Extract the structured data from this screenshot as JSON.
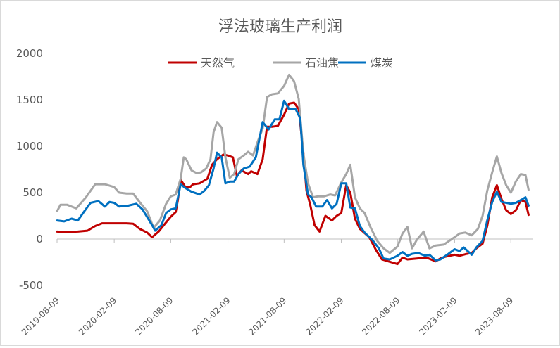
{
  "chart_data": {
    "type": "line",
    "title": "浮法玻璃生产利润",
    "xlabel": "",
    "ylabel": "",
    "ylim": [
      -500,
      2000
    ],
    "yticks": [
      -500,
      0,
      500,
      1000,
      1500,
      2000
    ],
    "xlim": [
      "2019-08-09",
      "2023-10-20"
    ],
    "xticks": [
      "2019-08-09",
      "2020-02-09",
      "2020-08-09",
      "2021-02-09",
      "2021-08-09",
      "2022-02-09",
      "2022-08-09",
      "2023-02-09",
      "2023-08-09"
    ],
    "grid": false,
    "legend_position": "top-center",
    "colors": {
      "天然气": "#c00000",
      "石油焦": "#a6a6a6",
      "煤炭": "#0070c0"
    },
    "series": [
      {
        "name": "天然气",
        "color": "#c00000",
        "points": [
          [
            "2019-08-09",
            80
          ],
          [
            "2019-09-01",
            75
          ],
          [
            "2019-10-15",
            80
          ],
          [
            "2019-11-15",
            90
          ],
          [
            "2019-12-10",
            140
          ],
          [
            "2020-01-01",
            170
          ],
          [
            "2020-02-15",
            170
          ],
          [
            "2020-03-20",
            170
          ],
          [
            "2020-04-10",
            165
          ],
          [
            "2020-05-01",
            110
          ],
          [
            "2020-05-25",
            70
          ],
          [
            "2020-06-10",
            20
          ],
          [
            "2020-07-01",
            80
          ],
          [
            "2020-07-20",
            160
          ],
          [
            "2020-08-09",
            240
          ],
          [
            "2020-08-25",
            290
          ],
          [
            "2020-09-01",
            420
          ],
          [
            "2020-09-10",
            640
          ],
          [
            "2020-09-25",
            560
          ],
          [
            "2020-10-10",
            560
          ],
          [
            "2020-10-20",
            590
          ],
          [
            "2020-11-10",
            600
          ],
          [
            "2020-12-05",
            650
          ],
          [
            "2020-12-20",
            800
          ],
          [
            "2021-01-05",
            860
          ],
          [
            "2021-01-25",
            910
          ],
          [
            "2021-02-09",
            900
          ],
          [
            "2021-02-25",
            880
          ],
          [
            "2021-03-10",
            680
          ],
          [
            "2021-03-25",
            740
          ],
          [
            "2021-04-15",
            700
          ],
          [
            "2021-04-25",
            730
          ],
          [
            "2021-05-15",
            700
          ],
          [
            "2021-06-01",
            860
          ],
          [
            "2021-06-15",
            1210
          ],
          [
            "2021-07-01",
            1210
          ],
          [
            "2021-07-20",
            1220
          ],
          [
            "2021-08-09",
            1340
          ],
          [
            "2021-08-25",
            1460
          ],
          [
            "2021-09-10",
            1470
          ],
          [
            "2021-09-25",
            1400
          ],
          [
            "2021-10-10",
            930
          ],
          [
            "2021-10-20",
            520
          ],
          [
            "2021-11-01",
            370
          ],
          [
            "2021-11-15",
            150
          ],
          [
            "2021-12-01",
            80
          ],
          [
            "2021-12-20",
            250
          ],
          [
            "2022-01-10",
            200
          ],
          [
            "2022-01-25",
            250
          ],
          [
            "2022-02-09",
            280
          ],
          [
            "2022-02-25",
            580
          ],
          [
            "2022-03-10",
            500
          ],
          [
            "2022-03-25",
            220
          ],
          [
            "2022-04-10",
            110
          ],
          [
            "2022-05-10",
            20
          ],
          [
            "2022-06-01",
            -120
          ],
          [
            "2022-06-20",
            -220
          ],
          [
            "2022-07-10",
            -240
          ],
          [
            "2022-08-09",
            -270
          ],
          [
            "2022-08-25",
            -200
          ],
          [
            "2022-09-10",
            -220
          ],
          [
            "2022-10-10",
            -210
          ],
          [
            "2022-11-10",
            -200
          ],
          [
            "2022-12-10",
            -240
          ],
          [
            "2022-12-25",
            -210
          ],
          [
            "2023-01-10",
            -190
          ],
          [
            "2023-02-09",
            -170
          ],
          [
            "2023-02-25",
            -180
          ],
          [
            "2023-03-20",
            -160
          ],
          [
            "2023-04-05",
            -150
          ],
          [
            "2023-04-20",
            -100
          ],
          [
            "2023-05-10",
            -50
          ],
          [
            "2023-05-25",
            140
          ],
          [
            "2023-06-10",
            450
          ],
          [
            "2023-06-25",
            580
          ],
          [
            "2023-07-10",
            430
          ],
          [
            "2023-07-25",
            310
          ],
          [
            "2023-08-09",
            270
          ],
          [
            "2023-08-25",
            310
          ],
          [
            "2023-09-10",
            420
          ],
          [
            "2023-09-25",
            400
          ],
          [
            "2023-10-05",
            260
          ]
        ]
      },
      {
        "name": "石油焦",
        "color": "#a6a6a6",
        "points": [
          [
            "2019-08-09",
            300
          ],
          [
            "2019-08-20",
            370
          ],
          [
            "2019-09-10",
            370
          ],
          [
            "2019-10-10",
            330
          ],
          [
            "2019-11-10",
            450
          ],
          [
            "2019-12-10",
            590
          ],
          [
            "2020-01-10",
            590
          ],
          [
            "2020-02-09",
            560
          ],
          [
            "2020-02-25",
            500
          ],
          [
            "2020-03-20",
            490
          ],
          [
            "2020-04-10",
            490
          ],
          [
            "2020-05-05",
            380
          ],
          [
            "2020-05-25",
            300
          ],
          [
            "2020-06-15",
            120
          ],
          [
            "2020-07-05",
            200
          ],
          [
            "2020-07-25",
            380
          ],
          [
            "2020-08-09",
            460
          ],
          [
            "2020-08-25",
            480
          ],
          [
            "2020-09-10",
            650
          ],
          [
            "2020-09-20",
            880
          ],
          [
            "2020-09-28",
            860
          ],
          [
            "2020-10-15",
            740
          ],
          [
            "2020-11-01",
            710
          ],
          [
            "2020-11-15",
            720
          ],
          [
            "2020-12-01",
            760
          ],
          [
            "2020-12-15",
            860
          ],
          [
            "2020-12-25",
            1150
          ],
          [
            "2021-01-05",
            1260
          ],
          [
            "2021-01-20",
            1200
          ],
          [
            "2021-02-01",
            880
          ],
          [
            "2021-02-15",
            660
          ],
          [
            "2021-03-01",
            700
          ],
          [
            "2021-03-15",
            860
          ],
          [
            "2021-04-01",
            900
          ],
          [
            "2021-04-15",
            940
          ],
          [
            "2021-05-01",
            900
          ],
          [
            "2021-05-15",
            1040
          ],
          [
            "2021-06-01",
            1190
          ],
          [
            "2021-06-15",
            1530
          ],
          [
            "2021-07-01",
            1560
          ],
          [
            "2021-07-20",
            1570
          ],
          [
            "2021-08-09",
            1650
          ],
          [
            "2021-08-25",
            1770
          ],
          [
            "2021-09-10",
            1700
          ],
          [
            "2021-09-25",
            1510
          ],
          [
            "2021-10-10",
            920
          ],
          [
            "2021-10-25",
            600
          ],
          [
            "2021-11-10",
            450
          ],
          [
            "2021-11-25",
            460
          ],
          [
            "2021-12-15",
            460
          ],
          [
            "2022-01-05",
            480
          ],
          [
            "2022-01-20",
            470
          ],
          [
            "2022-02-09",
            610
          ],
          [
            "2022-02-25",
            700
          ],
          [
            "2022-03-10",
            800
          ],
          [
            "2022-03-25",
            450
          ],
          [
            "2022-04-10",
            330
          ],
          [
            "2022-04-25",
            280
          ],
          [
            "2022-05-15",
            120
          ],
          [
            "2022-06-05",
            -20
          ],
          [
            "2022-06-25",
            -100
          ],
          [
            "2022-07-15",
            -150
          ],
          [
            "2022-08-09",
            -80
          ],
          [
            "2022-08-25",
            60
          ],
          [
            "2022-09-10",
            130
          ],
          [
            "2022-09-25",
            -100
          ],
          [
            "2022-10-10",
            -10
          ],
          [
            "2022-11-01",
            80
          ],
          [
            "2022-11-20",
            -100
          ],
          [
            "2022-12-10",
            -70
          ],
          [
            "2023-01-05",
            -60
          ],
          [
            "2023-02-09",
            20
          ],
          [
            "2023-02-25",
            60
          ],
          [
            "2023-03-15",
            70
          ],
          [
            "2023-04-05",
            40
          ],
          [
            "2023-04-25",
            110
          ],
          [
            "2023-05-10",
            250
          ],
          [
            "2023-05-25",
            520
          ],
          [
            "2023-06-10",
            720
          ],
          [
            "2023-06-25",
            890
          ],
          [
            "2023-07-10",
            710
          ],
          [
            "2023-07-25",
            580
          ],
          [
            "2023-08-09",
            500
          ],
          [
            "2023-08-25",
            620
          ],
          [
            "2023-09-10",
            700
          ],
          [
            "2023-09-25",
            690
          ],
          [
            "2023-10-05",
            530
          ]
        ]
      },
      {
        "name": "煤炭",
        "color": "#0070c0",
        "points": [
          [
            "2019-08-09",
            200
          ],
          [
            "2019-09-01",
            190
          ],
          [
            "2019-09-25",
            220
          ],
          [
            "2019-10-15",
            200
          ],
          [
            "2019-11-05",
            300
          ],
          [
            "2019-11-25",
            390
          ],
          [
            "2019-12-20",
            410
          ],
          [
            "2020-01-10",
            350
          ],
          [
            "2020-01-25",
            400
          ],
          [
            "2020-02-09",
            390
          ],
          [
            "2020-02-25",
            350
          ],
          [
            "2020-03-25",
            360
          ],
          [
            "2020-04-20",
            380
          ],
          [
            "2020-05-10",
            320
          ],
          [
            "2020-06-10",
            150
          ],
          [
            "2020-06-20",
            90
          ],
          [
            "2020-07-10",
            150
          ],
          [
            "2020-07-25",
            280
          ],
          [
            "2020-08-09",
            320
          ],
          [
            "2020-08-25",
            330
          ],
          [
            "2020-09-10",
            590
          ],
          [
            "2020-09-25",
            550
          ],
          [
            "2020-10-15",
            510
          ],
          [
            "2020-11-10",
            480
          ],
          [
            "2020-11-25",
            520
          ],
          [
            "2020-12-10",
            580
          ],
          [
            "2020-12-25",
            760
          ],
          [
            "2021-01-05",
            930
          ],
          [
            "2021-01-20",
            880
          ],
          [
            "2021-02-01",
            600
          ],
          [
            "2021-02-15",
            620
          ],
          [
            "2021-03-01",
            620
          ],
          [
            "2021-03-15",
            700
          ],
          [
            "2021-04-01",
            760
          ],
          [
            "2021-04-20",
            780
          ],
          [
            "2021-05-10",
            880
          ],
          [
            "2021-06-01",
            1260
          ],
          [
            "2021-06-20",
            1180
          ],
          [
            "2021-07-10",
            1290
          ],
          [
            "2021-07-25",
            1290
          ],
          [
            "2021-08-09",
            1490
          ],
          [
            "2021-08-25",
            1400
          ],
          [
            "2021-09-15",
            1400
          ],
          [
            "2021-09-30",
            1300
          ],
          [
            "2021-10-10",
            800
          ],
          [
            "2021-10-25",
            480
          ],
          [
            "2021-11-05",
            450
          ],
          [
            "2021-11-20",
            350
          ],
          [
            "2021-12-10",
            350
          ],
          [
            "2021-12-25",
            420
          ],
          [
            "2022-01-10",
            330
          ],
          [
            "2022-01-25",
            380
          ],
          [
            "2022-02-09",
            600
          ],
          [
            "2022-02-25",
            600
          ],
          [
            "2022-03-10",
            340
          ],
          [
            "2022-03-25",
            330
          ],
          [
            "2022-04-10",
            140
          ],
          [
            "2022-04-25",
            70
          ],
          [
            "2022-05-20",
            -10
          ],
          [
            "2022-06-10",
            -100
          ],
          [
            "2022-06-25",
            -210
          ],
          [
            "2022-07-15",
            -220
          ],
          [
            "2022-08-09",
            -180
          ],
          [
            "2022-08-25",
            -140
          ],
          [
            "2022-09-10",
            -180
          ],
          [
            "2022-09-25",
            -160
          ],
          [
            "2022-10-15",
            -150
          ],
          [
            "2022-11-05",
            -180
          ],
          [
            "2022-11-20",
            -170
          ],
          [
            "2022-12-10",
            -230
          ],
          [
            "2022-12-25",
            -220
          ],
          [
            "2023-01-20",
            -160
          ],
          [
            "2023-02-09",
            -110
          ],
          [
            "2023-02-25",
            -130
          ],
          [
            "2023-03-10",
            -90
          ],
          [
            "2023-04-05",
            -170
          ],
          [
            "2023-04-20",
            -90
          ],
          [
            "2023-05-10",
            -20
          ],
          [
            "2023-05-25",
            200
          ],
          [
            "2023-06-10",
            400
          ],
          [
            "2023-06-25",
            510
          ],
          [
            "2023-07-10",
            400
          ],
          [
            "2023-08-09",
            380
          ],
          [
            "2023-08-25",
            390
          ],
          [
            "2023-09-10",
            420
          ],
          [
            "2023-09-25",
            450
          ],
          [
            "2023-10-05",
            360
          ]
        ]
      }
    ]
  }
}
